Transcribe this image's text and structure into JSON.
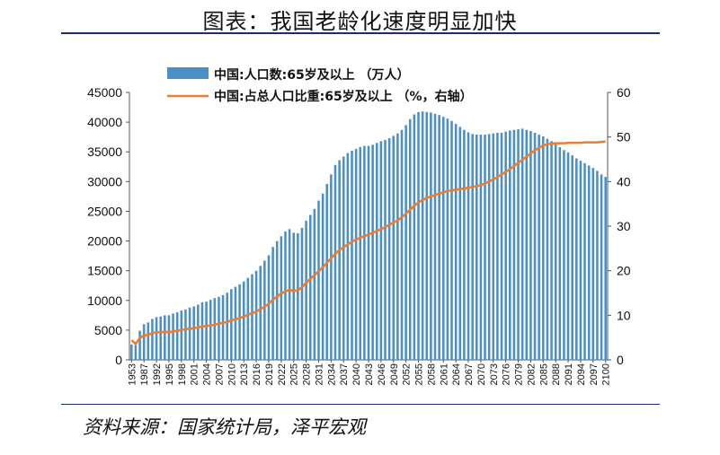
{
  "title": "图表：我国老龄化速度明显加快",
  "source": "资料来源：国家统计局，泽平宏观",
  "chart_data": {
    "type": "bar",
    "legend_position": "top-left",
    "grid": false,
    "y_left": {
      "min": 0,
      "max": 45000,
      "ticks": [
        "0",
        "5000",
        "10000",
        "15000",
        "20000",
        "25000",
        "30000",
        "35000",
        "40000",
        "45000"
      ]
    },
    "y_right": {
      "min": 0,
      "max": 60,
      "ticks": [
        "0",
        "10",
        "20",
        "30",
        "40",
        "50",
        "60"
      ]
    },
    "x": [
      1953,
      1964,
      1982,
      1987,
      1990,
      1991,
      1992,
      1993,
      1994,
      1995,
      1996,
      1997,
      1998,
      1999,
      2000,
      2001,
      2002,
      2003,
      2004,
      2005,
      2006,
      2007,
      2008,
      2009,
      2010,
      2011,
      2012,
      2013,
      2014,
      2015,
      2016,
      2017,
      2018,
      2019,
      2020,
      2021,
      2022,
      2023,
      2024,
      2025,
      2026,
      2027,
      2028,
      2029,
      2030,
      2031,
      2032,
      2033,
      2034,
      2035,
      2036,
      2037,
      2038,
      2039,
      2040,
      2041,
      2042,
      2043,
      2044,
      2045,
      2046,
      2047,
      2048,
      2049,
      2050,
      2051,
      2052,
      2053,
      2054,
      2055,
      2056,
      2057,
      2058,
      2059,
      2060,
      2061,
      2062,
      2063,
      2064,
      2065,
      2066,
      2067,
      2068,
      2069,
      2070,
      2071,
      2072,
      2073,
      2074,
      2075,
      2076,
      2077,
      2078,
      2079,
      2080,
      2081,
      2082,
      2083,
      2084,
      2085,
      2086,
      2087,
      2088,
      2089,
      2090,
      2091,
      2092,
      2093,
      2094,
      2095,
      2096,
      2097,
      2098,
      2099,
      2100
    ],
    "x_tick_labels": [
      "1953",
      "1987",
      "1992",
      "1995",
      "1998",
      "2001",
      "2004",
      "2007",
      "2010",
      "2013",
      "2016",
      "2019",
      "2022",
      "2025",
      "2028",
      "2031",
      "2034",
      "2037",
      "2040",
      "2043",
      "2046",
      "2049",
      "2052",
      "2055",
      "2058",
      "2061",
      "2064",
      "2067",
      "2070",
      "2073",
      "2076",
      "2079",
      "2082",
      "2085",
      "2088",
      "2091",
      "2094",
      "2097",
      "2100"
    ],
    "series": [
      {
        "name": "中国:人口数:65岁及以上 （万人）",
        "type": "bar",
        "axis": "left",
        "color": "#4a8fc7",
        "values": [
          2600,
          2500,
          4900,
          6000,
          6300,
          6900,
          7200,
          7300,
          7500,
          7500,
          7800,
          8000,
          8300,
          8500,
          8800,
          9000,
          9300,
          9700,
          9800,
          10100,
          10400,
          10600,
          10900,
          11300,
          11900,
          12300,
          12700,
          13200,
          13800,
          14400,
          15000,
          15800,
          16700,
          17600,
          19000,
          20000,
          20800,
          21600,
          22000,
          21400,
          21300,
          22200,
          23400,
          24400,
          25400,
          26800,
          28000,
          29600,
          31200,
          32800,
          33600,
          34200,
          34800,
          35200,
          35500,
          35800,
          36000,
          36000,
          36200,
          36500,
          36800,
          37000,
          37300,
          37700,
          38100,
          38700,
          39500,
          40500,
          41300,
          41700,
          41800,
          41700,
          41600,
          41400,
          41200,
          40900,
          40600,
          40200,
          39700,
          39200,
          38700,
          38300,
          38000,
          37900,
          37900,
          37900,
          38000,
          38100,
          38200,
          38200,
          38400,
          38600,
          38700,
          38800,
          38900,
          38700,
          38500,
          38200,
          37900,
          37600,
          37200,
          36800,
          36300,
          35800,
          35300,
          34900,
          34400,
          33900,
          33500,
          33100,
          32700,
          32300,
          31800,
          31200,
          30800
        ]
      },
      {
        "name": "中国:占总人口比重:65岁及以上 （%，右轴）",
        "type": "line",
        "axis": "right",
        "color": "#ed7d31",
        "values": [
          4.4,
          3.6,
          4.9,
          5.5,
          5.6,
          6.0,
          6.2,
          6.2,
          6.3,
          6.2,
          6.4,
          6.5,
          6.7,
          6.9,
          7.0,
          7.1,
          7.3,
          7.5,
          7.6,
          7.7,
          7.9,
          8.1,
          8.3,
          8.5,
          8.9,
          9.1,
          9.4,
          9.7,
          10.1,
          10.5,
          10.8,
          11.4,
          11.9,
          12.6,
          13.5,
          14.2,
          14.9,
          15.4,
          15.7,
          15.5,
          15.6,
          16.3,
          17.3,
          18.2,
          19.0,
          19.9,
          20.8,
          21.8,
          22.8,
          23.8,
          24.6,
          25.3,
          25.9,
          26.5,
          27.0,
          27.4,
          27.8,
          28.1,
          28.5,
          28.9,
          29.3,
          29.8,
          30.3,
          30.8,
          31.3,
          32.0,
          32.8,
          33.7,
          34.6,
          35.3,
          35.9,
          36.3,
          36.7,
          37.0,
          37.3,
          37.6,
          37.9,
          38.0,
          38.2,
          38.3,
          38.5,
          38.6,
          38.8,
          39.0,
          39.2,
          39.6,
          40.0,
          40.5,
          41.0,
          41.6,
          42.2,
          42.8,
          43.5,
          44.2,
          44.9,
          45.6,
          46.3,
          47.0,
          47.6,
          48.1,
          48.4,
          48.5,
          48.6,
          48.6,
          48.6,
          48.7,
          48.7,
          48.7,
          48.7,
          48.8,
          48.8,
          48.8,
          48.8,
          48.9,
          49.0
        ]
      }
    ]
  }
}
